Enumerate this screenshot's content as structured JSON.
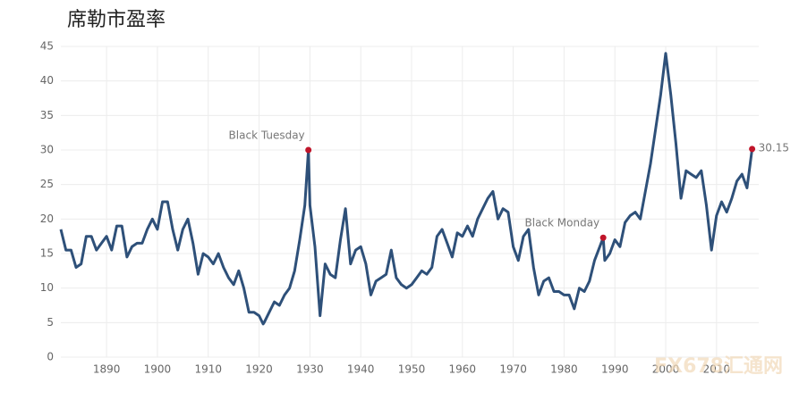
{
  "chart_data": {
    "type": "line",
    "title": "席勒市盈率",
    "x": [
      1881,
      1882,
      1883,
      1884,
      1885,
      1886,
      1887,
      1888,
      1889,
      1890,
      1891,
      1892,
      1893,
      1894,
      1895,
      1896,
      1897,
      1898,
      1899,
      1900,
      1901,
      1902,
      1903,
      1904,
      1905,
      1906,
      1907,
      1908,
      1909,
      1910,
      1911,
      1912,
      1913,
      1914,
      1915,
      1916,
      1917,
      1918,
      1919,
      1920,
      1920.8,
      1921,
      1922,
      1923,
      1924,
      1925,
      1926,
      1927,
      1928,
      1929,
      1929.7,
      1930,
      1931,
      1932,
      1933,
      1934,
      1935,
      1936,
      1937,
      1938,
      1939,
      1940,
      1941,
      1942,
      1943,
      1944,
      1945,
      1946,
      1947,
      1948,
      1949,
      1950,
      1951,
      1952,
      1953,
      1954,
      1955,
      1956,
      1957,
      1958,
      1959,
      1960,
      1961,
      1962,
      1963,
      1964,
      1965,
      1966,
      1967,
      1968,
      1969,
      1970,
      1971,
      1972,
      1973,
      1974,
      1975,
      1976,
      1977,
      1978,
      1979,
      1980,
      1981,
      1982,
      1983,
      1984,
      1985,
      1986,
      1987.7,
      1988,
      1989,
      1990,
      1991,
      1992,
      1993,
      1994,
      1995,
      1996,
      1997,
      1998,
      1999,
      2000,
      2001,
      2002,
      2003,
      2004,
      2005,
      2006,
      2007,
      2008,
      2009,
      2010,
      2011,
      2012,
      2013,
      2014,
      2015,
      2016,
      2017
    ],
    "values": [
      18.5,
      15.5,
      15.5,
      13,
      13.5,
      17.5,
      17.5,
      15.5,
      16.5,
      17.5,
      15.5,
      19,
      19,
      14.5,
      16,
      16.5,
      16.5,
      18.5,
      20,
      18.5,
      22.5,
      22.5,
      18.5,
      15.5,
      18.5,
      20,
      16.5,
      12,
      15,
      14.5,
      13.5,
      15,
      13,
      11.5,
      10.5,
      12.5,
      10,
      6.5,
      6.5,
      6,
      4.8,
      5,
      6.5,
      8,
      7.5,
      9,
      10,
      12.5,
      17,
      22,
      30,
      22,
      16,
      6,
      13.5,
      12,
      11.5,
      17,
      21.5,
      13.5,
      15.5,
      16,
      13.5,
      9,
      11,
      11.5,
      12,
      15.5,
      11.5,
      10.5,
      10,
      10.5,
      11.5,
      12.5,
      12,
      13,
      17.5,
      18.5,
      16.5,
      14.5,
      18,
      17.5,
      19,
      17.5,
      20,
      21.5,
      23,
      24,
      20,
      21.5,
      21,
      16,
      14,
      17.5,
      18.5,
      13,
      9,
      11,
      11.5,
      9.5,
      9.5,
      9,
      9,
      7,
      10,
      9.5,
      11,
      14,
      17.3,
      14,
      15,
      17,
      16,
      19.5,
      20.5,
      21,
      20,
      24,
      28,
      33,
      38,
      44,
      38,
      31,
      23,
      27,
      26.5,
      26,
      27,
      22,
      15.5,
      20.5,
      22.5,
      21,
      23,
      25.5,
      26.5,
      24.5,
      30.15
    ],
    "color": "#2e5079",
    "marker_color": "#c0152a",
    "annotations": [
      {
        "text": "Black Tuesday",
        "x": 1929.7
      },
      {
        "text": "Black Monday",
        "x": 1987.7
      }
    ],
    "xlim": [
      1881,
      2018.3
    ],
    "xticks": [
      1890,
      1900,
      1910,
      1920,
      1930,
      1940,
      1950,
      1960,
      1970,
      1980,
      1990,
      2000,
      2010
    ],
    "ylim": [
      0,
      45
    ],
    "yticks": [
      0,
      5,
      10,
      15,
      20,
      25,
      30,
      35,
      40,
      45
    ],
    "grid": true,
    "watermark": "FX678汇通网"
  }
}
